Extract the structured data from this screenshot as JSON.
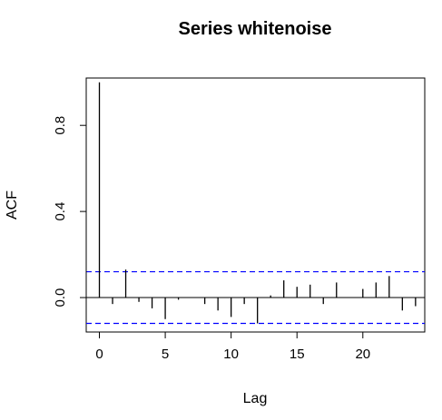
{
  "chart_data": {
    "type": "bar",
    "title": "Series  whitenoise",
    "xlabel": "Lag",
    "ylabel": "ACF",
    "x": [
      0,
      1,
      2,
      3,
      4,
      5,
      6,
      7,
      8,
      9,
      10,
      11,
      12,
      13,
      14,
      15,
      16,
      17,
      18,
      19,
      20,
      21,
      22,
      23,
      24
    ],
    "values": [
      1.0,
      -0.03,
      0.13,
      -0.02,
      -0.05,
      -0.1,
      -0.01,
      0.0,
      -0.03,
      -0.06,
      -0.09,
      -0.03,
      -0.12,
      0.01,
      0.08,
      0.05,
      0.06,
      -0.03,
      0.07,
      0.0,
      0.04,
      0.07,
      0.1,
      -0.06,
      -0.04
    ],
    "confidence_bound": 0.12,
    "xlim": [
      -1,
      24.7
    ],
    "ylim": [
      -0.16,
      1.02
    ],
    "xticks": [
      0,
      5,
      10,
      15,
      20
    ],
    "xtick_labels": [
      "0",
      "5",
      "10",
      "15",
      "20"
    ],
    "yticks": [
      0.0,
      0.4,
      0.8
    ],
    "ytick_labels": [
      "0.0",
      "0.4",
      "0.8"
    ],
    "spike_color": "#000000",
    "ci_color": "#0000ff",
    "grid": false
  }
}
